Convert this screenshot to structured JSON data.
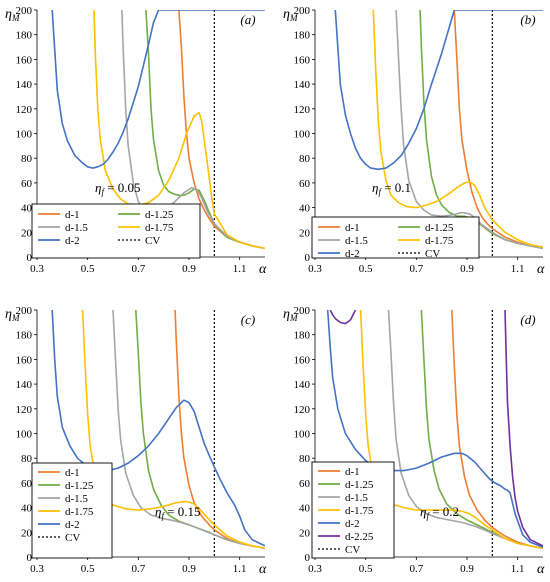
{
  "figure": {
    "y_axis_title": "ηM",
    "x_axis_title": "α",
    "colors": {
      "d-1": "#ED7D31",
      "d-1.25": "#70AD47",
      "d-1.5": "#A5A5A5",
      "d-1.75": "#FFC000",
      "d-2": "#4472C4",
      "d-2.25": "#7030A0",
      "CV": "#000000"
    }
  },
  "chart_data": [
    {
      "type": "line",
      "panel": "(a)",
      "annotation": "ηf = 0.05",
      "xlim": [
        0.3,
        1.2
      ],
      "ylim": [
        0,
        200
      ],
      "xticks": [
        "0.3",
        "0.5",
        "0.7",
        "0.9",
        "1.1"
      ],
      "yticks": [
        "0",
        "20",
        "40",
        "60",
        "80",
        "100",
        "120",
        "140",
        "160",
        "180",
        "200"
      ],
      "legend": [
        "d-1",
        "d-1.25",
        "d-1.5",
        "d-1.75",
        "d-2",
        "CV"
      ],
      "cv_x": 1.0,
      "series": [
        {
          "name": "d-1",
          "x": [
            0.86,
            0.87,
            0.88,
            0.89,
            0.9,
            0.92,
            0.94,
            0.96,
            0.98,
            1.0,
            1.05,
            1.1,
            1.15,
            1.2
          ],
          "y": [
            200,
            170,
            130,
            100,
            80,
            60,
            47,
            38,
            31,
            25,
            16,
            12,
            9,
            7
          ]
        },
        {
          "name": "d-1.25",
          "x": [
            0.73,
            0.74,
            0.75,
            0.76,
            0.78,
            0.8,
            0.82,
            0.84,
            0.86,
            0.88,
            0.9,
            0.92,
            0.94,
            0.96,
            0.98,
            1.0,
            1.05,
            1.1,
            1.15,
            1.2
          ],
          "y": [
            200,
            165,
            120,
            95,
            70,
            58,
            53,
            51,
            50,
            50,
            52,
            55,
            54,
            46,
            36,
            27,
            16,
            12,
            9,
            7
          ]
        },
        {
          "name": "d-1.5",
          "x": [
            0.635,
            0.64,
            0.65,
            0.66,
            0.68,
            0.7,
            0.72,
            0.74,
            0.76,
            0.8,
            0.84,
            0.88,
            0.91,
            0.93,
            0.95,
            0.97,
            1.0,
            1.05,
            1.1,
            1.15,
            1.2
          ],
          "y": [
            200,
            170,
            120,
            90,
            60,
            45,
            39,
            37,
            36,
            38,
            44,
            52,
            56,
            55,
            48,
            38,
            27,
            17,
            12,
            9,
            7
          ]
        },
        {
          "name": "d-1.75",
          "x": [
            0.525,
            0.53,
            0.54,
            0.55,
            0.57,
            0.6,
            0.63,
            0.66,
            0.7,
            0.74,
            0.78,
            0.82,
            0.86,
            0.89,
            0.92,
            0.94,
            0.95,
            0.97,
            0.99,
            1.0,
            1.05,
            1.1,
            1.15,
            1.2
          ],
          "y": [
            200,
            165,
            120,
            95,
            70,
            55,
            47,
            43,
            42,
            44,
            50,
            62,
            80,
            100,
            114,
            117,
            110,
            80,
            48,
            35,
            18,
            12,
            9,
            7
          ]
        },
        {
          "name": "d-2",
          "x": [
            0.36,
            0.38,
            0.4,
            0.42,
            0.45,
            0.48,
            0.5,
            0.52,
            0.54,
            0.56,
            0.58,
            0.6,
            0.62,
            0.64,
            0.66,
            0.68,
            0.7,
            0.72,
            0.74,
            0.76,
            0.78,
            0.8,
            0.84,
            0.88,
            0.92,
            0.96,
            1.0,
            1.05,
            1.1,
            1.15,
            1.2
          ],
          "y": [
            200,
            135,
            108,
            94,
            82,
            76,
            73,
            72,
            73,
            75,
            79,
            85,
            92,
            101,
            112,
            125,
            138,
            155,
            172,
            190,
            200,
            200,
            200,
            200,
            200,
            200,
            200,
            200,
            200,
            200,
            200
          ]
        }
      ]
    },
    {
      "type": "line",
      "panel": "(b)",
      "annotation": "ηf = 0.1",
      "xlim": [
        0.3,
        1.2
      ],
      "ylim": [
        0,
        200
      ],
      "xticks": [
        "0.3",
        "0.5",
        "0.7",
        "0.9",
        "1.1"
      ],
      "yticks": [
        "0",
        "20",
        "40",
        "60",
        "80",
        "100",
        "120",
        "140",
        "160",
        "180",
        "200"
      ],
      "legend": [
        "d-1",
        "d-1.25",
        "d-1.5",
        "d-1.75",
        "d-2",
        "CV"
      ],
      "cv_x": 1.0,
      "series": [
        {
          "name": "d-1",
          "x": [
            0.85,
            0.86,
            0.87,
            0.88,
            0.9,
            0.92,
            0.94,
            0.96,
            0.98,
            1.0,
            1.05,
            1.1,
            1.15,
            1.2
          ],
          "y": [
            200,
            160,
            120,
            95,
            70,
            52,
            40,
            32,
            27,
            23,
            16,
            12,
            9,
            7
          ]
        },
        {
          "name": "d-1.25",
          "x": [
            0.715,
            0.72,
            0.73,
            0.74,
            0.76,
            0.78,
            0.8,
            0.83,
            0.86,
            0.89,
            0.92,
            0.95,
            0.98,
            1.0,
            1.05,
            1.1,
            1.15,
            1.2
          ],
          "y": [
            200,
            170,
            125,
            95,
            65,
            50,
            42,
            36,
            33,
            33,
            31,
            27,
            22,
            19,
            14,
            11,
            9,
            7
          ]
        },
        {
          "name": "d-1.5",
          "x": [
            0.62,
            0.63,
            0.64,
            0.65,
            0.67,
            0.7,
            0.73,
            0.76,
            0.8,
            0.84,
            0.88,
            0.91,
            0.93,
            0.96,
            1.0,
            1.05,
            1.1,
            1.15,
            1.2
          ],
          "y": [
            200,
            160,
            120,
            90,
            62,
            45,
            38,
            34,
            33,
            34,
            36,
            35,
            32,
            26,
            20,
            14,
            11,
            9,
            7
          ]
        },
        {
          "name": "d-1.75",
          "x": [
            0.53,
            0.54,
            0.55,
            0.56,
            0.58,
            0.6,
            0.63,
            0.66,
            0.7,
            0.74,
            0.78,
            0.82,
            0.86,
            0.89,
            0.91,
            0.93,
            0.95,
            0.97,
            1.0,
            1.05,
            1.1,
            1.15,
            1.2
          ],
          "y": [
            200,
            150,
            110,
            85,
            62,
            50,
            44,
            41,
            40,
            42,
            45,
            50,
            56,
            60,
            61,
            58,
            50,
            40,
            30,
            20,
            14,
            10,
            8
          ]
        },
        {
          "name": "d-2",
          "x": [
            0.38,
            0.4,
            0.42,
            0.44,
            0.46,
            0.48,
            0.5,
            0.52,
            0.55,
            0.58,
            0.61,
            0.64,
            0.67,
            0.7,
            0.73,
            0.76,
            0.8,
            0.85,
            0.9,
            0.95,
            1.0,
            1.05,
            1.1,
            1.15,
            1.2
          ],
          "y": [
            200,
            140,
            115,
            100,
            88,
            80,
            75,
            72,
            71,
            72,
            76,
            82,
            92,
            104,
            120,
            140,
            165,
            200,
            200,
            200,
            200,
            200,
            200,
            200,
            200
          ]
        }
      ]
    },
    {
      "type": "line",
      "panel": "(c)",
      "annotation": "ηf = 0.15",
      "xlim": [
        0.3,
        1.2
      ],
      "ylim": [
        0,
        200
      ],
      "xticks": [
        "0.3",
        "0.5",
        "0.7",
        "0.9",
        "1.1"
      ],
      "yticks": [
        "0",
        "20",
        "40",
        "60",
        "80",
        "100",
        "120",
        "140",
        "160",
        "180",
        "200"
      ],
      "legend": [
        "d-1",
        "d-1.25",
        "d-1.5",
        "d-1.75",
        "d-2",
        "CV"
      ],
      "cv_x": 1.0,
      "series": [
        {
          "name": "d-1",
          "x": [
            0.845,
            0.85,
            0.86,
            0.87,
            0.88,
            0.9,
            0.92,
            0.95,
            0.98,
            1.0,
            1.05,
            1.1,
            1.15,
            1.2
          ],
          "y": [
            200,
            175,
            130,
            100,
            80,
            58,
            44,
            33,
            26,
            22,
            15,
            11,
            9,
            7
          ]
        },
        {
          "name": "d-1.25",
          "x": [
            0.69,
            0.7,
            0.71,
            0.72,
            0.74,
            0.76,
            0.79,
            0.82,
            0.86,
            0.9,
            0.94,
            0.98,
            1.0,
            1.05,
            1.1,
            1.15,
            1.2
          ],
          "y": [
            200,
            165,
            125,
            100,
            70,
            55,
            42,
            34,
            29,
            26,
            23,
            20,
            18,
            14,
            11,
            9,
            7
          ]
        },
        {
          "name": "d-1.5",
          "x": [
            0.6,
            0.61,
            0.62,
            0.63,
            0.65,
            0.68,
            0.71,
            0.75,
            0.8,
            0.85,
            0.9,
            0.95,
            1.0,
            1.05,
            1.1,
            1.15,
            1.2
          ],
          "y": [
            200,
            160,
            120,
            95,
            68,
            50,
            40,
            34,
            31,
            29,
            26,
            22,
            18,
            14,
            11,
            9,
            7
          ]
        },
        {
          "name": "d-1.75",
          "x": [
            0.48,
            0.49,
            0.5,
            0.51,
            0.53,
            0.56,
            0.6,
            0.65,
            0.7,
            0.75,
            0.8,
            0.85,
            0.89,
            0.92,
            0.95,
            0.98,
            1.0,
            1.05,
            1.1,
            1.15,
            1.2
          ],
          "y": [
            200,
            155,
            115,
            90,
            65,
            50,
            42,
            39,
            38,
            39,
            41,
            44,
            45,
            43,
            37,
            30,
            26,
            17,
            12,
            9,
            7
          ]
        },
        {
          "name": "d-2",
          "x": [
            0.36,
            0.37,
            0.38,
            0.4,
            0.43,
            0.46,
            0.5,
            0.54,
            0.58,
            0.62,
            0.66,
            0.7,
            0.74,
            0.78,
            0.82,
            0.85,
            0.88,
            0.9,
            0.92,
            0.94,
            0.96,
            0.98,
            1.0,
            1.02,
            1.05,
            1.08,
            1.1,
            1.12,
            1.15,
            1.2
          ],
          "y": [
            200,
            160,
            130,
            105,
            90,
            80,
            73,
            70,
            70,
            72,
            76,
            82,
            90,
            100,
            112,
            121,
            127,
            125,
            118,
            105,
            92,
            82,
            73,
            64,
            52,
            42,
            33,
            22,
            14,
            9
          ]
        }
      ]
    },
    {
      "type": "line",
      "panel": "(d)",
      "annotation": "ηf = 0.2",
      "xlim": [
        0.3,
        1.2
      ],
      "ylim": [
        0,
        200
      ],
      "xticks": [
        "0.3",
        "0.5",
        "0.7",
        "0.9",
        "1.1"
      ],
      "yticks": [
        "0",
        "20",
        "40",
        "60",
        "80",
        "100",
        "120",
        "140",
        "160",
        "180",
        "200"
      ],
      "legend": [
        "d-1",
        "d-1.25",
        "d-1.5",
        "d-1.75",
        "d-2",
        "d-2.25",
        "CV"
      ],
      "cv_x": 1.0,
      "series": [
        {
          "name": "d-1",
          "x": [
            0.84,
            0.85,
            0.86,
            0.87,
            0.89,
            0.91,
            0.94,
            0.97,
            1.0,
            1.05,
            1.1,
            1.15,
            1.2
          ],
          "y": [
            200,
            155,
            115,
            90,
            65,
            50,
            38,
            30,
            24,
            17,
            12,
            9,
            7
          ]
        },
        {
          "name": "d-1.25",
          "x": [
            0.72,
            0.73,
            0.74,
            0.75,
            0.77,
            0.79,
            0.82,
            0.86,
            0.9,
            0.94,
            0.98,
            1.0,
            1.05,
            1.1,
            1.15,
            1.2
          ],
          "y": [
            200,
            160,
            120,
            95,
            70,
            55,
            43,
            35,
            30,
            26,
            22,
            20,
            15,
            11,
            9,
            7
          ]
        },
        {
          "name": "d-1.5",
          "x": [
            0.59,
            0.6,
            0.61,
            0.62,
            0.64,
            0.67,
            0.7,
            0.74,
            0.78,
            0.83,
            0.88,
            0.93,
            0.98,
            1.0,
            1.05,
            1.1,
            1.15,
            1.2
          ],
          "y": [
            200,
            165,
            125,
            95,
            68,
            50,
            41,
            35,
            32,
            30,
            28,
            25,
            21,
            19,
            15,
            11,
            9,
            7
          ]
        },
        {
          "name": "d-1.75",
          "x": [
            0.48,
            0.49,
            0.5,
            0.51,
            0.53,
            0.56,
            0.6,
            0.65,
            0.7,
            0.75,
            0.8,
            0.85,
            0.88,
            0.91,
            0.94,
            0.97,
            1.0,
            1.05,
            1.1,
            1.15,
            1.2
          ],
          "y": [
            200,
            155,
            115,
            90,
            65,
            50,
            43,
            40,
            38,
            38,
            38,
            38,
            37,
            35,
            31,
            26,
            22,
            15,
            11,
            9,
            7
          ]
        },
        {
          "name": "d-2",
          "x": [
            0.35,
            0.36,
            0.37,
            0.39,
            0.42,
            0.46,
            0.5,
            0.55,
            0.6,
            0.65,
            0.7,
            0.75,
            0.8,
            0.85,
            0.88,
            0.9,
            0.93,
            0.96,
            0.99,
            1.01,
            1.03,
            1.05,
            1.06,
            1.07,
            1.09,
            1.12,
            1.15,
            1.2
          ],
          "y": [
            200,
            170,
            145,
            120,
            100,
            87,
            78,
            72,
            70,
            70,
            72,
            76,
            81,
            84,
            84,
            82,
            77,
            70,
            63,
            60,
            58,
            55,
            54,
            52,
            35,
            18,
            12,
            8
          ]
        },
        {
          "name": "d-2.25",
          "x": [
            0.36,
            0.37,
            0.38,
            0.4,
            0.42,
            0.44,
            0.45,
            0.46
          ],
          "y": [
            200,
            196,
            193,
            190,
            189,
            192,
            196,
            200
          ]
        },
        {
          "name": "d-2.25",
          "x": [
            1.05,
            1.055,
            1.06,
            1.07,
            1.08,
            1.09,
            1.1,
            1.12,
            1.15,
            1.2
          ],
          "y": [
            200,
            160,
            125,
            90,
            65,
            48,
            37,
            24,
            14,
            9
          ]
        }
      ]
    }
  ]
}
